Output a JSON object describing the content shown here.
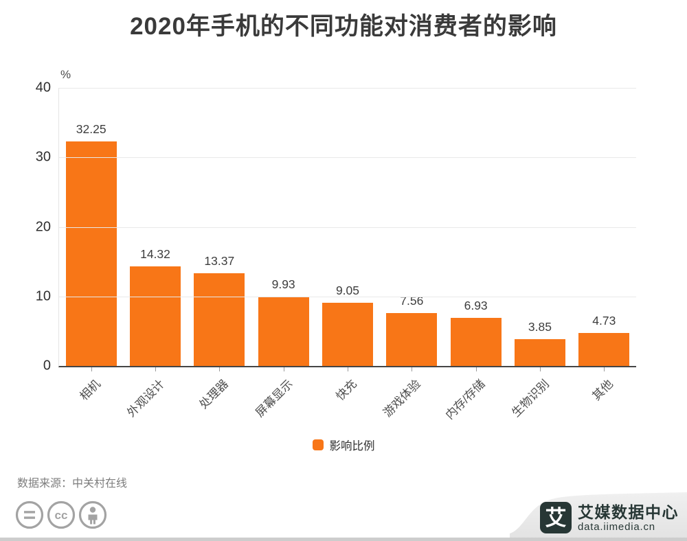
{
  "title": "2020年手机的不同功能对消费者的影响",
  "chart_data": {
    "type": "bar",
    "title": "2020年手机的不同功能对消费者的影响",
    "categories": [
      "相机",
      "外观设计",
      "处理器",
      "屏幕显示",
      "快充",
      "游戏体验",
      "内存/存储",
      "生物识别",
      "其他"
    ],
    "values": [
      32.25,
      14.32,
      13.37,
      9.93,
      9.05,
      7.56,
      6.93,
      3.85,
      4.73
    ],
    "series_name": "影响比例",
    "unit_label": "%",
    "ylim": [
      0,
      40
    ],
    "yticks": [
      40,
      30,
      20,
      10,
      0
    ],
    "grid": true,
    "legend_position": "bottom",
    "bar_color": "#f87617",
    "value_label_decimals": 2
  },
  "legend": {
    "label": "影响比例",
    "color": "#f87617"
  },
  "footer": {
    "source": "数据来源：中关村在线",
    "license_icons": [
      "equals-circle-icon",
      "cc-circle-icon",
      "person-circle-icon"
    ]
  },
  "branding": {
    "logo_glyph": "艾",
    "name": "艾媒数据中心",
    "domain": "data.iimedia.cn",
    "brand_color": "#273735",
    "ribbon_color": "#e9e9e9"
  },
  "colors": {
    "bar": "#f87617",
    "title_text": "#3a3a3a",
    "axis_line": "#454545",
    "gridline": "#e9e9e9",
    "tick_text": "#2f2f2f",
    "license_icon": "#a3a3a3"
  }
}
